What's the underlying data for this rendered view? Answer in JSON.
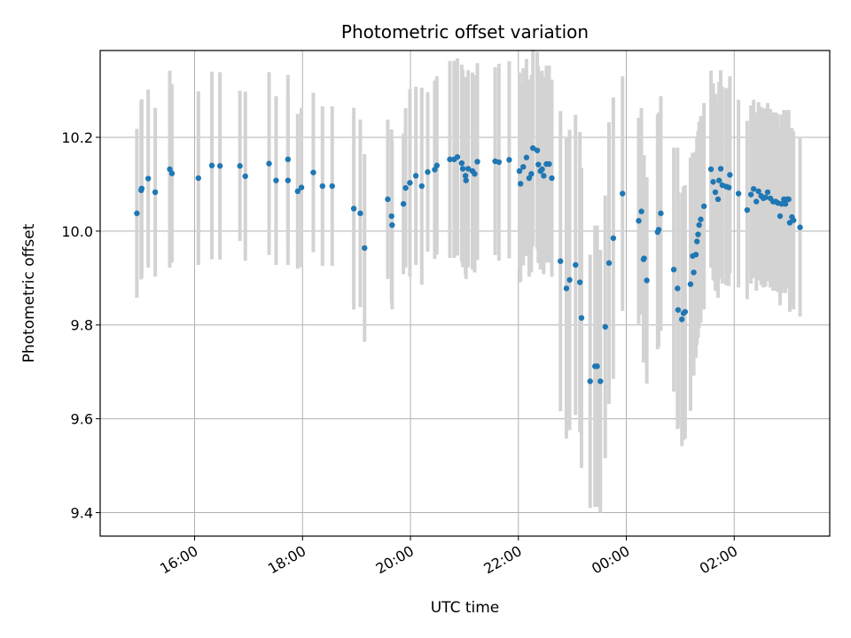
{
  "chart_data": {
    "type": "scatter",
    "title": "Photometric offset variation",
    "xlabel": "UTC time",
    "ylabel": "Photometric offset",
    "x_unit": "hours since 00:00 (negative = previous day)",
    "xlim": [
      -9.75,
      3.77
    ],
    "ylim": [
      9.35,
      10.385
    ],
    "x_ticks": [
      {
        "value": -8,
        "label": "16:00"
      },
      {
        "value": -6,
        "label": "18:00"
      },
      {
        "value": -4,
        "label": "20:00"
      },
      {
        "value": -2,
        "label": "22:00"
      },
      {
        "value": 0,
        "label": "00:00"
      },
      {
        "value": 2,
        "label": "02:00"
      }
    ],
    "y_ticks": [
      {
        "value": 9.4,
        "label": "9.4"
      },
      {
        "value": 9.6,
        "label": "9.6"
      },
      {
        "value": 9.8,
        "label": "9.8"
      },
      {
        "value": 10.0,
        "label": "10.0"
      },
      {
        "value": 10.2,
        "label": "10.2"
      }
    ],
    "grid": true,
    "colors": {
      "point": "#1f77b4",
      "errorbar": "#d3d3d3",
      "grid": "#b0b0b0"
    },
    "series": [
      {
        "name": "offset",
        "points": [
          [
            -9.07,
            10.038,
            0.18
          ],
          [
            -8.99,
            10.087,
            0.19
          ],
          [
            -8.98,
            10.091,
            0.19
          ],
          [
            -8.86,
            10.112,
            0.19
          ],
          [
            -8.73,
            10.083,
            0.18
          ],
          [
            -8.46,
            10.132,
            0.21
          ],
          [
            -8.42,
            10.123,
            0.19
          ],
          [
            -7.93,
            10.113,
            0.185
          ],
          [
            -7.68,
            10.14,
            0.2
          ],
          [
            -7.53,
            10.139,
            0.2
          ],
          [
            -7.16,
            10.139,
            0.16
          ],
          [
            -7.06,
            10.117,
            0.18
          ],
          [
            -6.62,
            10.144,
            0.195
          ],
          [
            -6.49,
            10.108,
            0.18
          ],
          [
            -6.27,
            10.153,
            0.18
          ],
          [
            -6.27,
            10.108,
            0.18
          ],
          [
            -6.09,
            10.085,
            0.165
          ],
          [
            -6.02,
            10.093,
            0.17
          ],
          [
            -5.8,
            10.125,
            0.17
          ],
          [
            -5.63,
            10.096,
            0.17
          ],
          [
            -5.45,
            10.096,
            0.17
          ],
          [
            -5.05,
            10.048,
            0.215
          ],
          [
            -4.93,
            10.038,
            0.2
          ],
          [
            -4.85,
            9.964,
            0.2
          ],
          [
            -4.42,
            10.068,
            0.17
          ],
          [
            -4.35,
            10.032,
            0.185
          ],
          [
            -4.34,
            10.013,
            0.18
          ],
          [
            -4.13,
            10.058,
            0.15
          ],
          [
            -4.09,
            10.092,
            0.17
          ],
          [
            -4.01,
            10.103,
            0.2
          ],
          [
            -3.9,
            10.118,
            0.19
          ],
          [
            -3.79,
            10.096,
            0.21
          ],
          [
            -3.68,
            10.126,
            0.17
          ],
          [
            -3.55,
            10.131,
            0.19
          ],
          [
            -3.51,
            10.14,
            0.19
          ],
          [
            -3.27,
            10.153,
            0.21
          ],
          [
            -3.19,
            10.153,
            0.21
          ],
          [
            -3.13,
            10.158,
            0.21
          ],
          [
            -3.05,
            10.145,
            0.21
          ],
          [
            -3.03,
            10.133,
            0.21
          ],
          [
            -2.98,
            10.118,
            0.21
          ],
          [
            -2.97,
            10.108,
            0.21
          ],
          [
            -2.93,
            10.133,
            0.21
          ],
          [
            -2.85,
            10.128,
            0.21
          ],
          [
            -2.81,
            10.122,
            0.21
          ],
          [
            -2.76,
            10.148,
            0.21
          ],
          [
            -2.43,
            10.149,
            0.2
          ],
          [
            -2.36,
            10.147,
            0.21
          ],
          [
            -2.17,
            10.152,
            0.21
          ],
          [
            -1.98,
            10.128,
            0.21
          ],
          [
            -1.96,
            10.101,
            0.21
          ],
          [
            -1.91,
            10.137,
            0.21
          ],
          [
            -1.85,
            10.157,
            0.21
          ],
          [
            -1.8,
            10.113,
            0.21
          ],
          [
            -1.76,
            10.122,
            0.21
          ],
          [
            -1.73,
            10.177,
            0.21
          ],
          [
            -1.65,
            10.172,
            0.21
          ],
          [
            -1.63,
            10.142,
            0.21
          ],
          [
            -1.59,
            10.128,
            0.21
          ],
          [
            -1.56,
            10.132,
            0.21
          ],
          [
            -1.53,
            10.118,
            0.21
          ],
          [
            -1.48,
            10.143,
            0.21
          ],
          [
            -1.43,
            10.143,
            0.21
          ],
          [
            -1.38,
            10.113,
            0.21
          ],
          [
            -1.22,
            9.936,
            0.32
          ],
          [
            -1.11,
            9.878,
            0.32
          ],
          [
            -1.05,
            9.896,
            0.32
          ],
          [
            -0.94,
            9.928,
            0.32
          ],
          [
            -0.86,
            9.891,
            0.32
          ],
          [
            -0.83,
            9.815,
            0.32
          ],
          [
            -0.67,
            9.68,
            0.27
          ],
          [
            -0.58,
            9.712,
            0.3
          ],
          [
            -0.54,
            9.712,
            0.3
          ],
          [
            -0.48,
            9.68,
            0.28
          ],
          [
            -0.39,
            9.796,
            0.28
          ],
          [
            -0.32,
            9.932,
            0.3
          ],
          [
            -0.24,
            9.985,
            0.3
          ],
          [
            -0.07,
            10.08,
            0.25
          ],
          [
            0.23,
            10.022,
            0.22
          ],
          [
            0.28,
            10.042,
            0.22
          ],
          [
            0.32,
            9.94,
            0.22
          ],
          [
            0.33,
            9.942,
            0.22
          ],
          [
            0.38,
            9.895,
            0.22
          ],
          [
            0.58,
            9.998,
            0.25
          ],
          [
            0.6,
            10.003,
            0.25
          ],
          [
            0.64,
            10.038,
            0.25
          ],
          [
            0.88,
            9.918,
            0.26
          ],
          [
            0.95,
            9.878,
            0.3
          ],
          [
            0.96,
            9.832,
            0.25
          ],
          [
            1.03,
            9.812,
            0.27
          ],
          [
            1.06,
            9.825,
            0.27
          ],
          [
            1.09,
            9.828,
            0.27
          ],
          [
            1.19,
            9.887,
            0.27
          ],
          [
            1.23,
            9.947,
            0.22
          ],
          [
            1.25,
            9.912,
            0.22
          ],
          [
            1.29,
            9.95,
            0.22
          ],
          [
            1.31,
            9.978,
            0.22
          ],
          [
            1.33,
            9.993,
            0.22
          ],
          [
            1.35,
            10.013,
            0.22
          ],
          [
            1.38,
            10.025,
            0.22
          ],
          [
            1.44,
            10.053,
            0.22
          ],
          [
            1.57,
            10.132,
            0.21
          ],
          [
            1.61,
            10.105,
            0.21
          ],
          [
            1.65,
            10.083,
            0.21
          ],
          [
            1.7,
            10.068,
            0.21
          ],
          [
            1.72,
            10.108,
            0.21
          ],
          [
            1.75,
            10.133,
            0.21
          ],
          [
            1.78,
            10.098,
            0.21
          ],
          [
            1.85,
            10.095,
            0.21
          ],
          [
            1.9,
            10.093,
            0.21
          ],
          [
            1.92,
            10.12,
            0.21
          ],
          [
            2.08,
            10.08,
            0.2
          ],
          [
            2.24,
            10.045,
            0.19
          ],
          [
            2.31,
            10.078,
            0.19
          ],
          [
            2.36,
            10.09,
            0.19
          ],
          [
            2.41,
            10.063,
            0.19
          ],
          [
            2.45,
            10.085,
            0.19
          ],
          [
            2.5,
            10.075,
            0.19
          ],
          [
            2.54,
            10.07,
            0.19
          ],
          [
            2.58,
            10.072,
            0.19
          ],
          [
            2.62,
            10.083,
            0.19
          ],
          [
            2.67,
            10.07,
            0.19
          ],
          [
            2.72,
            10.063,
            0.19
          ],
          [
            2.77,
            10.063,
            0.19
          ],
          [
            2.81,
            10.06,
            0.19
          ],
          [
            2.85,
            10.032,
            0.19
          ],
          [
            2.88,
            10.058,
            0.19
          ],
          [
            2.92,
            10.068,
            0.19
          ],
          [
            2.95,
            10.058,
            0.19
          ],
          [
            2.98,
            10.068,
            0.19
          ],
          [
            3.01,
            10.068,
            0.19
          ],
          [
            3.03,
            10.018,
            0.19
          ],
          [
            3.07,
            10.03,
            0.19
          ],
          [
            3.1,
            10.023,
            0.19
          ],
          [
            3.22,
            10.008,
            0.19
          ]
        ]
      }
    ]
  }
}
